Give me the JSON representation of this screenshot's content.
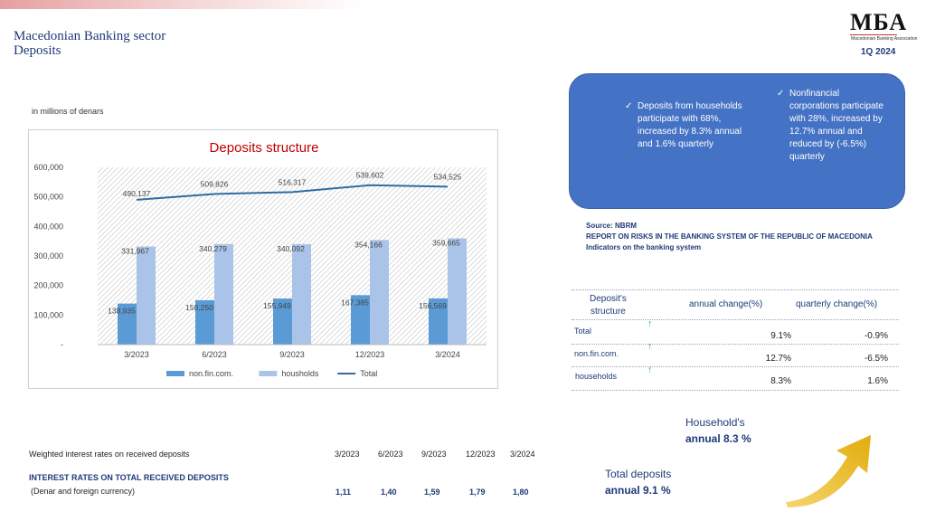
{
  "header": {
    "title_line1": "Macedonian Banking sector",
    "title_line2": "Deposits",
    "logo": "МБА",
    "logo_subtitle": "Macedonian Banking Association",
    "period": "1Q 2024"
  },
  "unit_note": "in millions of denars",
  "chart_data": {
    "type": "bar",
    "title": "Deposits structure",
    "categories": [
      "3/2023",
      "6/2023",
      "9/2023",
      "12/2023",
      "3/2024"
    ],
    "series": [
      {
        "name": "non.fin.com.",
        "kind": "bar",
        "values": [
          138935,
          150250,
          155949,
          167385,
          156569
        ],
        "labels": [
          "138,935",
          "150,250",
          "155,949",
          "167,385",
          "156,569"
        ],
        "color": "#5b9bd5"
      },
      {
        "name": "housholds",
        "kind": "bar",
        "values": [
          331967,
          340279,
          340092,
          354166,
          359665
        ],
        "labels": [
          "331,967",
          "340,279",
          "340,092",
          "354,166",
          "359,665"
        ],
        "color": "#a9c4e8"
      },
      {
        "name": "Total",
        "kind": "line",
        "values": [
          490137,
          509826,
          516317,
          539602,
          534525
        ],
        "labels": [
          "490,137",
          "509,826",
          "516,317",
          "539,602",
          "534,525"
        ],
        "color": "#2e6da4"
      }
    ],
    "yticks": [
      "-",
      "100,000",
      "200,000",
      "300,000",
      "400,000",
      "500,000",
      "600,000"
    ],
    "ylim": [
      0,
      600000
    ],
    "legend_position": "bottom",
    "grid": false
  },
  "highlights": {
    "households": "Deposits from households participate with 68%, increased by 8.3% annual and 1.6% quarterly",
    "nonfinancial": "Nonfinancial corporations participate with 28%, increased  by 12.7% annual  and  reduced by (-6.5%) quarterly"
  },
  "source": {
    "line1": "Source: NBRM",
    "line2": "REPORT ON RISKS IN THE BANKING SYSTEM OF THE REPUBLIC OF MACEDONIA",
    "line3": "Indicators on the banking system"
  },
  "structure_table": {
    "col0_line1": "Deposit's",
    "col0_line2": "structure",
    "col1": "annual change(%)",
    "col2": "quarterly change(%)",
    "rows": [
      {
        "label": "Total",
        "annual": "9.1%",
        "quarterly": "-0.9%"
      },
      {
        "label": "non.fin.com.",
        "annual": "12.7%",
        "quarterly": "-6.5%"
      },
      {
        "label": "households",
        "annual": "8.3%",
        "quarterly": "1.6%"
      }
    ]
  },
  "callouts": {
    "households_label": "Household's",
    "households_value": "annual 8.3 %",
    "total_label": "Total deposits",
    "total_value": "annual 9.1 %"
  },
  "rates": {
    "header_label": "Weighted interest rates on received deposits",
    "periods": [
      "3/2023",
      "6/2023",
      "9/2023",
      "12/2023",
      "3/2024"
    ],
    "title": "INTEREST RATES ON TOTAL RECEIVED DEPOSITS",
    "subtitle": "(Denar and foreign currency)",
    "values": [
      "1,11",
      "1,40",
      "1,59",
      "1,79",
      "1,80"
    ]
  }
}
